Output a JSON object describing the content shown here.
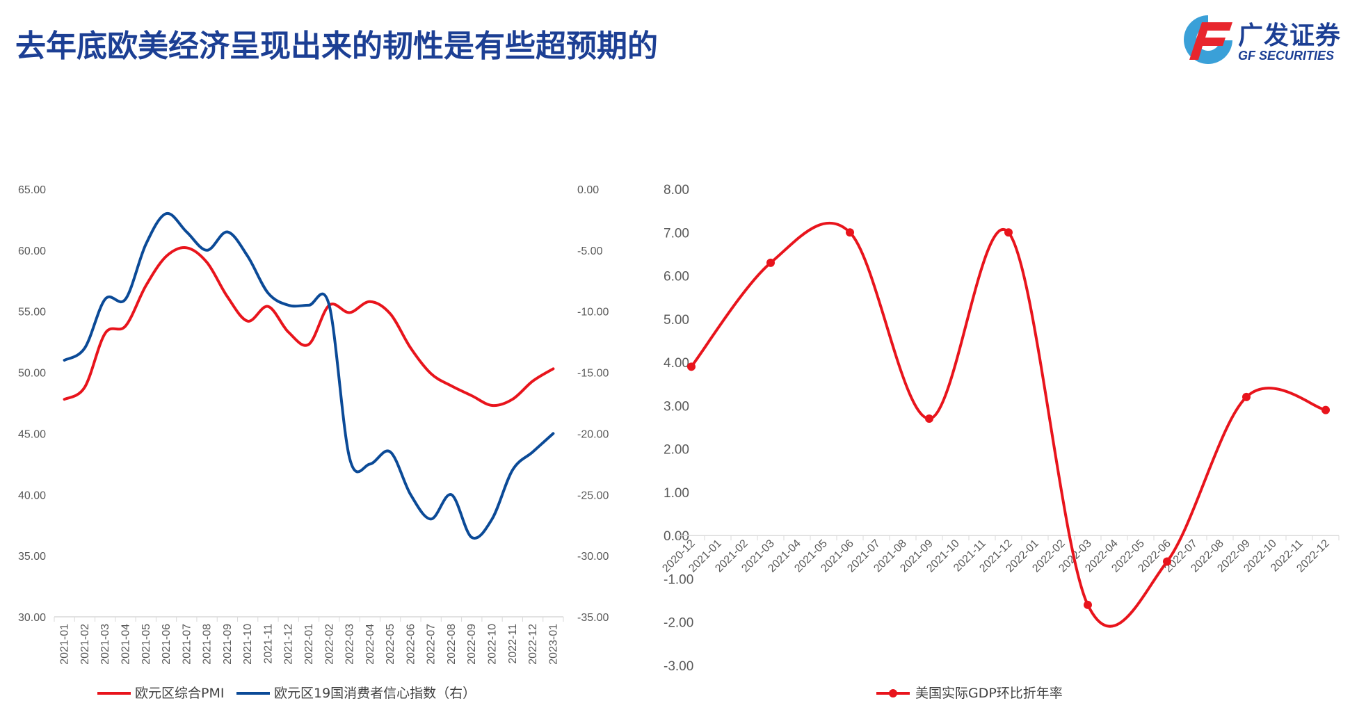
{
  "page": {
    "title": "去年底欧美经济呈现出来的韧性是有些超预期的"
  },
  "logo": {
    "name_cn": "广发证券",
    "name_en": "GF SECURITIES",
    "colors": {
      "blue": "#1c3f94",
      "red": "#e8262d",
      "light_blue": "#3aa0d8"
    }
  },
  "chart_data": [
    {
      "type": "line",
      "categories": [
        "2021-01",
        "2021-02",
        "2021-03",
        "2021-04",
        "2021-05",
        "2021-06",
        "2021-07",
        "2021-08",
        "2021-09",
        "2021-10",
        "2021-11",
        "2021-12",
        "2022-01",
        "2022-02",
        "2022-03",
        "2022-04",
        "2022-05",
        "2022-06",
        "2022-07",
        "2022-08",
        "2022-09",
        "2022-10",
        "2022-11",
        "2022-12",
        "2023-01"
      ],
      "series": [
        {
          "name": "欧元区综合PMI",
          "axis": "left",
          "color": "#e8141c",
          "values": [
            47.8,
            48.8,
            53.2,
            53.8,
            57.1,
            59.5,
            60.2,
            59.0,
            56.2,
            54.2,
            55.4,
            53.3,
            52.3,
            55.5,
            54.9,
            55.8,
            54.8,
            52.0,
            49.9,
            48.9,
            48.1,
            47.3,
            47.8,
            49.3,
            50.3
          ]
        },
        {
          "name": "欧元区19国消费者信心指数（右）",
          "axis": "right",
          "color": "#0b4a97",
          "values": [
            -14.0,
            -13.0,
            -9.0,
            -9.0,
            -4.5,
            -2.0,
            -3.5,
            -5.0,
            -3.5,
            -5.5,
            -8.5,
            -9.5,
            -9.5,
            -9.5,
            -22.0,
            -22.5,
            -21.5,
            -25.0,
            -27.0,
            -25.0,
            -28.5,
            -27.0,
            -23.0,
            -21.5,
            -20.0
          ]
        }
      ],
      "left_axis": {
        "min": 30,
        "max": 65,
        "step": 5,
        "ticks": [
          "65.00",
          "60.00",
          "55.00",
          "50.00",
          "45.00",
          "40.00",
          "35.00",
          "30.00"
        ]
      },
      "right_axis": {
        "min": -35,
        "max": 0,
        "step": 5,
        "ticks": [
          "0.00",
          "-5.00",
          "-10.00",
          "-15.00",
          "-20.00",
          "-25.00",
          "-30.00",
          "-35.00"
        ]
      },
      "legend": [
        {
          "label": "欧元区综合PMI",
          "color": "#e8141c"
        },
        {
          "label": "欧元区19国消费者信心指数（右）",
          "color": "#0b4a97"
        }
      ],
      "legend_position": "bottom"
    },
    {
      "type": "line",
      "categories": [
        "2020-12",
        "2021-01",
        "2021-02",
        "2021-03",
        "2021-04",
        "2021-05",
        "2021-06",
        "2021-07",
        "2021-08",
        "2021-09",
        "2021-10",
        "2021-11",
        "2021-12",
        "2022-01",
        "2022-02",
        "2022-03",
        "2022-04",
        "2022-05",
        "2022-06",
        "2022-07",
        "2022-08",
        "2022-09",
        "2022-10",
        "2022-11",
        "2022-12"
      ],
      "series": [
        {
          "name": "美国实际GDP环比折年率",
          "color": "#e8141c",
          "x": [
            "2020-12",
            "2021-03",
            "2021-06",
            "2021-09",
            "2021-12",
            "2022-03",
            "2022-06",
            "2022-09",
            "2022-12"
          ],
          "values": [
            3.9,
            6.3,
            7.0,
            2.7,
            7.0,
            -1.6,
            -0.6,
            3.2,
            2.9
          ]
        }
      ],
      "y_axis": {
        "min": -3,
        "max": 8,
        "step": 1,
        "ticks": [
          "8.00",
          "7.00",
          "6.00",
          "5.00",
          "4.00",
          "3.00",
          "2.00",
          "1.00",
          "0.00",
          "-1.00",
          "-2.00",
          "-3.00"
        ]
      },
      "legend": [
        {
          "label": "美国实际GDP环比折年率",
          "color": "#e8141c"
        }
      ],
      "legend_position": "bottom"
    }
  ]
}
